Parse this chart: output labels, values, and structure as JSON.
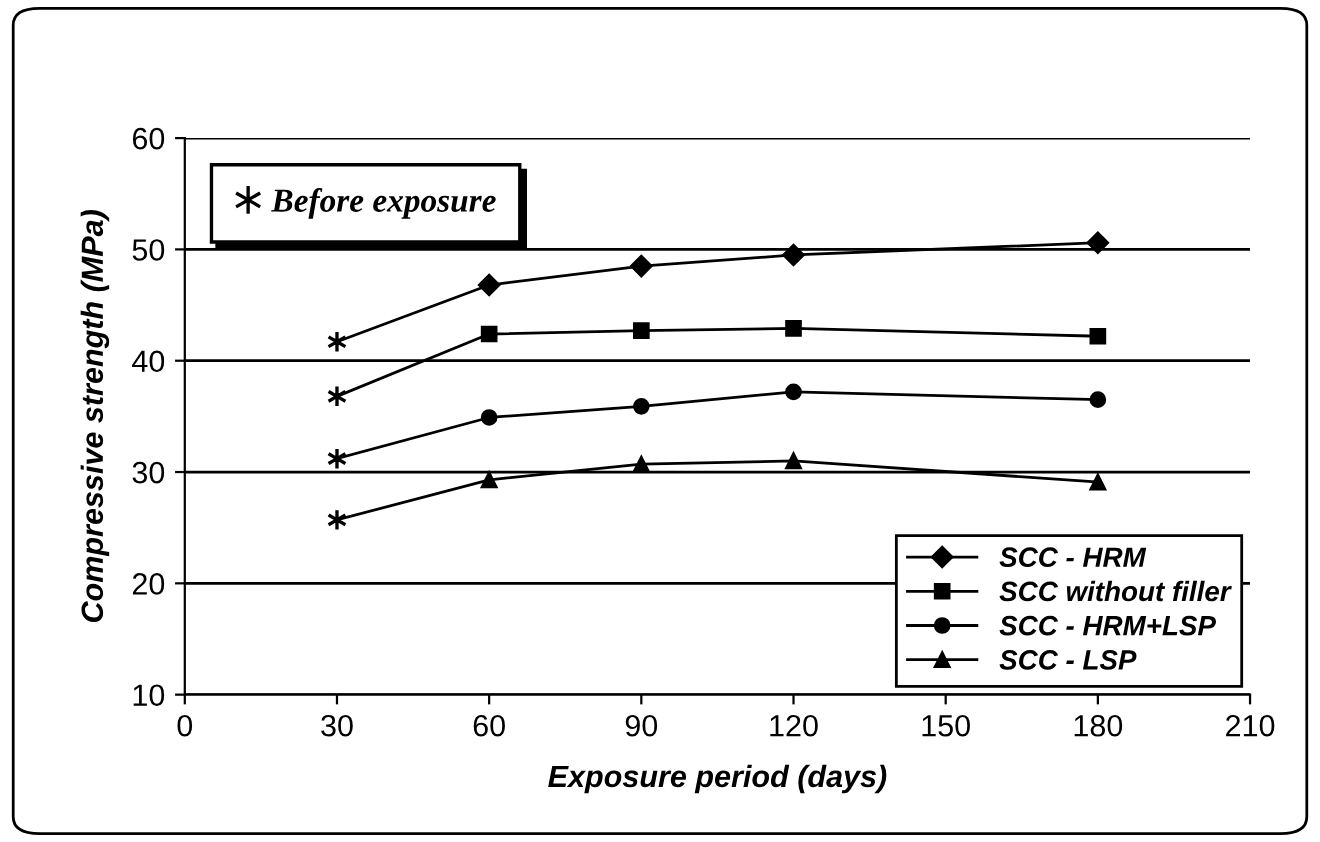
{
  "chart_data": {
    "type": "line",
    "xlabel": "Exposure period (days)",
    "ylabel": "Compressive strength (MPa)",
    "xlim": [
      0,
      210
    ],
    "xticks": [
      0,
      30,
      60,
      90,
      120,
      150,
      180,
      210
    ],
    "ylim": [
      10,
      60
    ],
    "yticks": [
      10,
      20,
      30,
      40,
      50,
      60
    ],
    "grid": "y",
    "legend": "bottom right",
    "line_style": "solid",
    "series": [
      {
        "name": "SCC - HRM",
        "color": "#000000",
        "marker": "diamond",
        "x": [
          30,
          60,
          90,
          120,
          180
        ],
        "values": [
          41.7,
          46.8,
          48.5,
          49.5,
          50.6
        ]
      },
      {
        "name": "SCC without filler",
        "color": "#000000",
        "marker": "square",
        "x": [
          30,
          60,
          90,
          120,
          180
        ],
        "values": [
          36.8,
          42.4,
          42.7,
          42.9,
          42.2
        ]
      },
      {
        "name": "SCC - HRM+LSP",
        "color": "#000000",
        "marker": "circle",
        "x": [
          30,
          60,
          90,
          120,
          180
        ],
        "values": [
          31.2,
          34.9,
          35.9,
          37.2,
          36.5
        ]
      },
      {
        "name": "SCC - LSP",
        "color": "#000000",
        "marker": "triangle",
        "x": [
          30,
          60,
          90,
          120,
          180
        ],
        "values": [
          25.7,
          29.3,
          30.7,
          31.0,
          29.1
        ]
      },
      {
        "name": "Before exposure",
        "type": "scatter",
        "color": "#000000",
        "marker": "cross",
        "x": [
          30,
          30,
          30,
          30
        ],
        "values": [
          41.7,
          36.8,
          31.2,
          25.7
        ]
      }
    ]
  }
}
